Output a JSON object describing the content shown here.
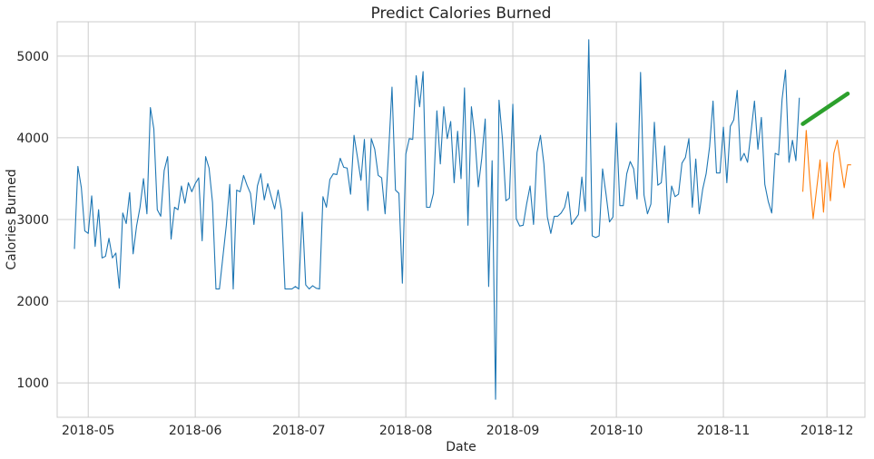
{
  "chart_data": {
    "type": "line",
    "title": "Predict Calories Burned",
    "xlabel": "Date",
    "ylabel": "Calories Burned",
    "x_ticks": [
      "2018-05",
      "2018-06",
      "2018-07",
      "2018-08",
      "2018-09",
      "2018-10",
      "2018-11",
      "2018-12"
    ],
    "y_ticks": [
      1000,
      2000,
      3000,
      4000,
      5000
    ],
    "xlim": [
      "2018-04-22",
      "2018-12-12"
    ],
    "ylim": [
      580,
      5420
    ],
    "grid": true,
    "series": [
      {
        "color": "#1f77b4",
        "start_date": "2018-04-27",
        "values": [
          2640,
          3650,
          3390,
          2860,
          2830,
          3290,
          2670,
          3120,
          2530,
          2550,
          2770,
          2530,
          2590,
          2160,
          3080,
          2950,
          3330,
          2580,
          2920,
          3150,
          3500,
          3070,
          4370,
          4110,
          3120,
          3040,
          3600,
          3770,
          2760,
          3150,
          3120,
          3410,
          3200,
          3450,
          3340,
          3440,
          3510,
          2740,
          3770,
          3630,
          3210,
          2150,
          2150,
          2540,
          2930,
          3430,
          2150,
          3360,
          3340,
          3540,
          3420,
          3320,
          2940,
          3410,
          3560,
          3240,
          3440,
          3280,
          3130,
          3360,
          3110,
          2150,
          2150,
          2150,
          2180,
          2150,
          3090,
          2200,
          2150,
          2190,
          2160,
          2150,
          3280,
          3150,
          3490,
          3560,
          3550,
          3750,
          3640,
          3630,
          3310,
          4030,
          3760,
          3480,
          3980,
          3110,
          3990,
          3860,
          3540,
          3510,
          3070,
          3810,
          4620,
          3360,
          3320,
          2220,
          3800,
          3990,
          3980,
          4760,
          4380,
          4810,
          3150,
          3150,
          3320,
          4330,
          3680,
          4380,
          3990,
          4200,
          3450,
          4080,
          3500,
          4610,
          2930,
          4380,
          4010,
          3400,
          3750,
          4230,
          2180,
          3720,
          800,
          4460,
          3980,
          3230,
          3260,
          4410,
          3010,
          2920,
          2930,
          3190,
          3410,
          2940,
          3820,
          4030,
          3680,
          3030,
          2830,
          3040,
          3040,
          3080,
          3150,
          3340,
          2940,
          3000,
          3060,
          3520,
          3100,
          5200,
          2800,
          2780,
          2800,
          3620,
          3310,
          2970,
          3030,
          4180,
          3170,
          3170,
          3560,
          3710,
          3620,
          3250,
          4800,
          3300,
          3070,
          3190,
          4190,
          3420,
          3450,
          3900,
          2960,
          3410,
          3280,
          3310,
          3690,
          3760,
          3990,
          3150,
          3740,
          3070,
          3370,
          3560,
          3890,
          4450,
          3570,
          3570,
          4130,
          3450,
          4140,
          4220,
          4580,
          3720,
          3810,
          3700,
          4070,
          4450,
          3860,
          4250,
          3430,
          3220,
          3080,
          3810,
          3790,
          4470,
          4830,
          3700,
          3970,
          3720,
          4490
        ]
      },
      {
        "color": "#ff7f0e",
        "start_date": "2018-11-24",
        "values": [
          3340,
          4090,
          3490,
          3010,
          3370,
          3730,
          3090,
          3700,
          3230,
          3810,
          3970,
          3670,
          3390,
          3670,
          3670
        ]
      },
      {
        "color": "#2ca02c",
        "points": [
          [
            "2018-11-24",
            4170
          ],
          [
            "2018-12-07",
            4540
          ]
        ]
      }
    ]
  }
}
